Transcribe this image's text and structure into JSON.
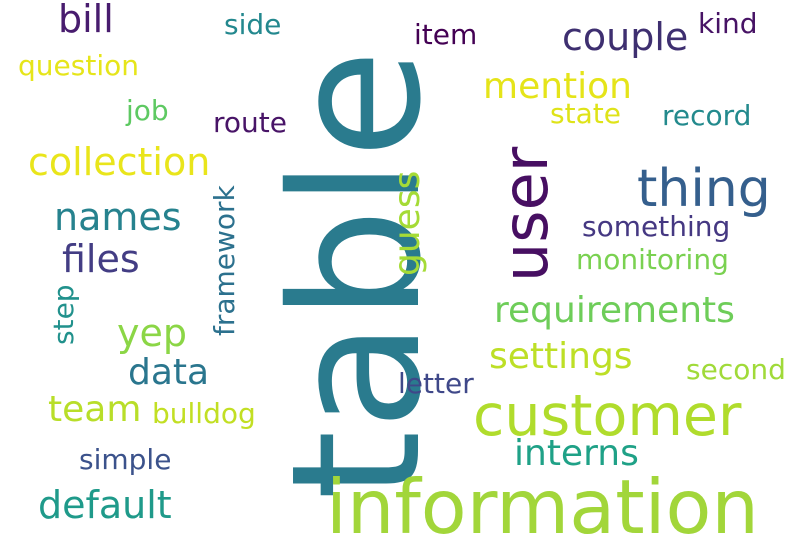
{
  "words": [
    {
      "text": "table",
      "color": "#2a7b8e"
    },
    {
      "text": "information",
      "color": "#a2d63a"
    },
    {
      "text": "customer",
      "color": "#b0dc2c"
    },
    {
      "text": "user",
      "color": "#470f62"
    },
    {
      "text": "thing",
      "color": "#355f8d"
    },
    {
      "text": "collection",
      "color": "#e9e51b"
    },
    {
      "text": "requirements",
      "color": "#6ecd59"
    },
    {
      "text": "settings",
      "color": "#bddf26"
    },
    {
      "text": "mention",
      "color": "#e5e419"
    },
    {
      "text": "couple",
      "color": "#3e2f70"
    },
    {
      "text": "names",
      "color": "#26828e"
    },
    {
      "text": "files",
      "color": "#433d84"
    },
    {
      "text": "data",
      "color": "#2a768e"
    },
    {
      "text": "default",
      "color": "#1f9a8a"
    },
    {
      "text": "interns",
      "color": "#1fa187"
    },
    {
      "text": "team",
      "color": "#b8de29"
    },
    {
      "text": "yep",
      "color": "#8bd646"
    },
    {
      "text": "bill",
      "color": "#481c6e"
    },
    {
      "text": "guess",
      "color": "#a5db36"
    },
    {
      "text": "question",
      "color": "#e6e51a"
    },
    {
      "text": "side",
      "color": "#23888e"
    },
    {
      "text": "item",
      "color": "#440154"
    },
    {
      "text": "kind",
      "color": "#471365"
    },
    {
      "text": "job",
      "color": "#5ec962"
    },
    {
      "text": "route",
      "color": "#481467"
    },
    {
      "text": "state",
      "color": "#dfe318"
    },
    {
      "text": "record",
      "color": "#238a8d"
    },
    {
      "text": "something",
      "color": "#453882"
    },
    {
      "text": "monitoring",
      "color": "#7ad151"
    },
    {
      "text": "framework",
      "color": "#2c718e"
    },
    {
      "text": "step",
      "color": "#21918c"
    },
    {
      "text": "letter",
      "color": "#3f4889"
    },
    {
      "text": "second",
      "color": "#a0da39"
    },
    {
      "text": "bulldog",
      "color": "#c2df23"
    },
    {
      "text": "simple",
      "color": "#3b528b"
    }
  ]
}
